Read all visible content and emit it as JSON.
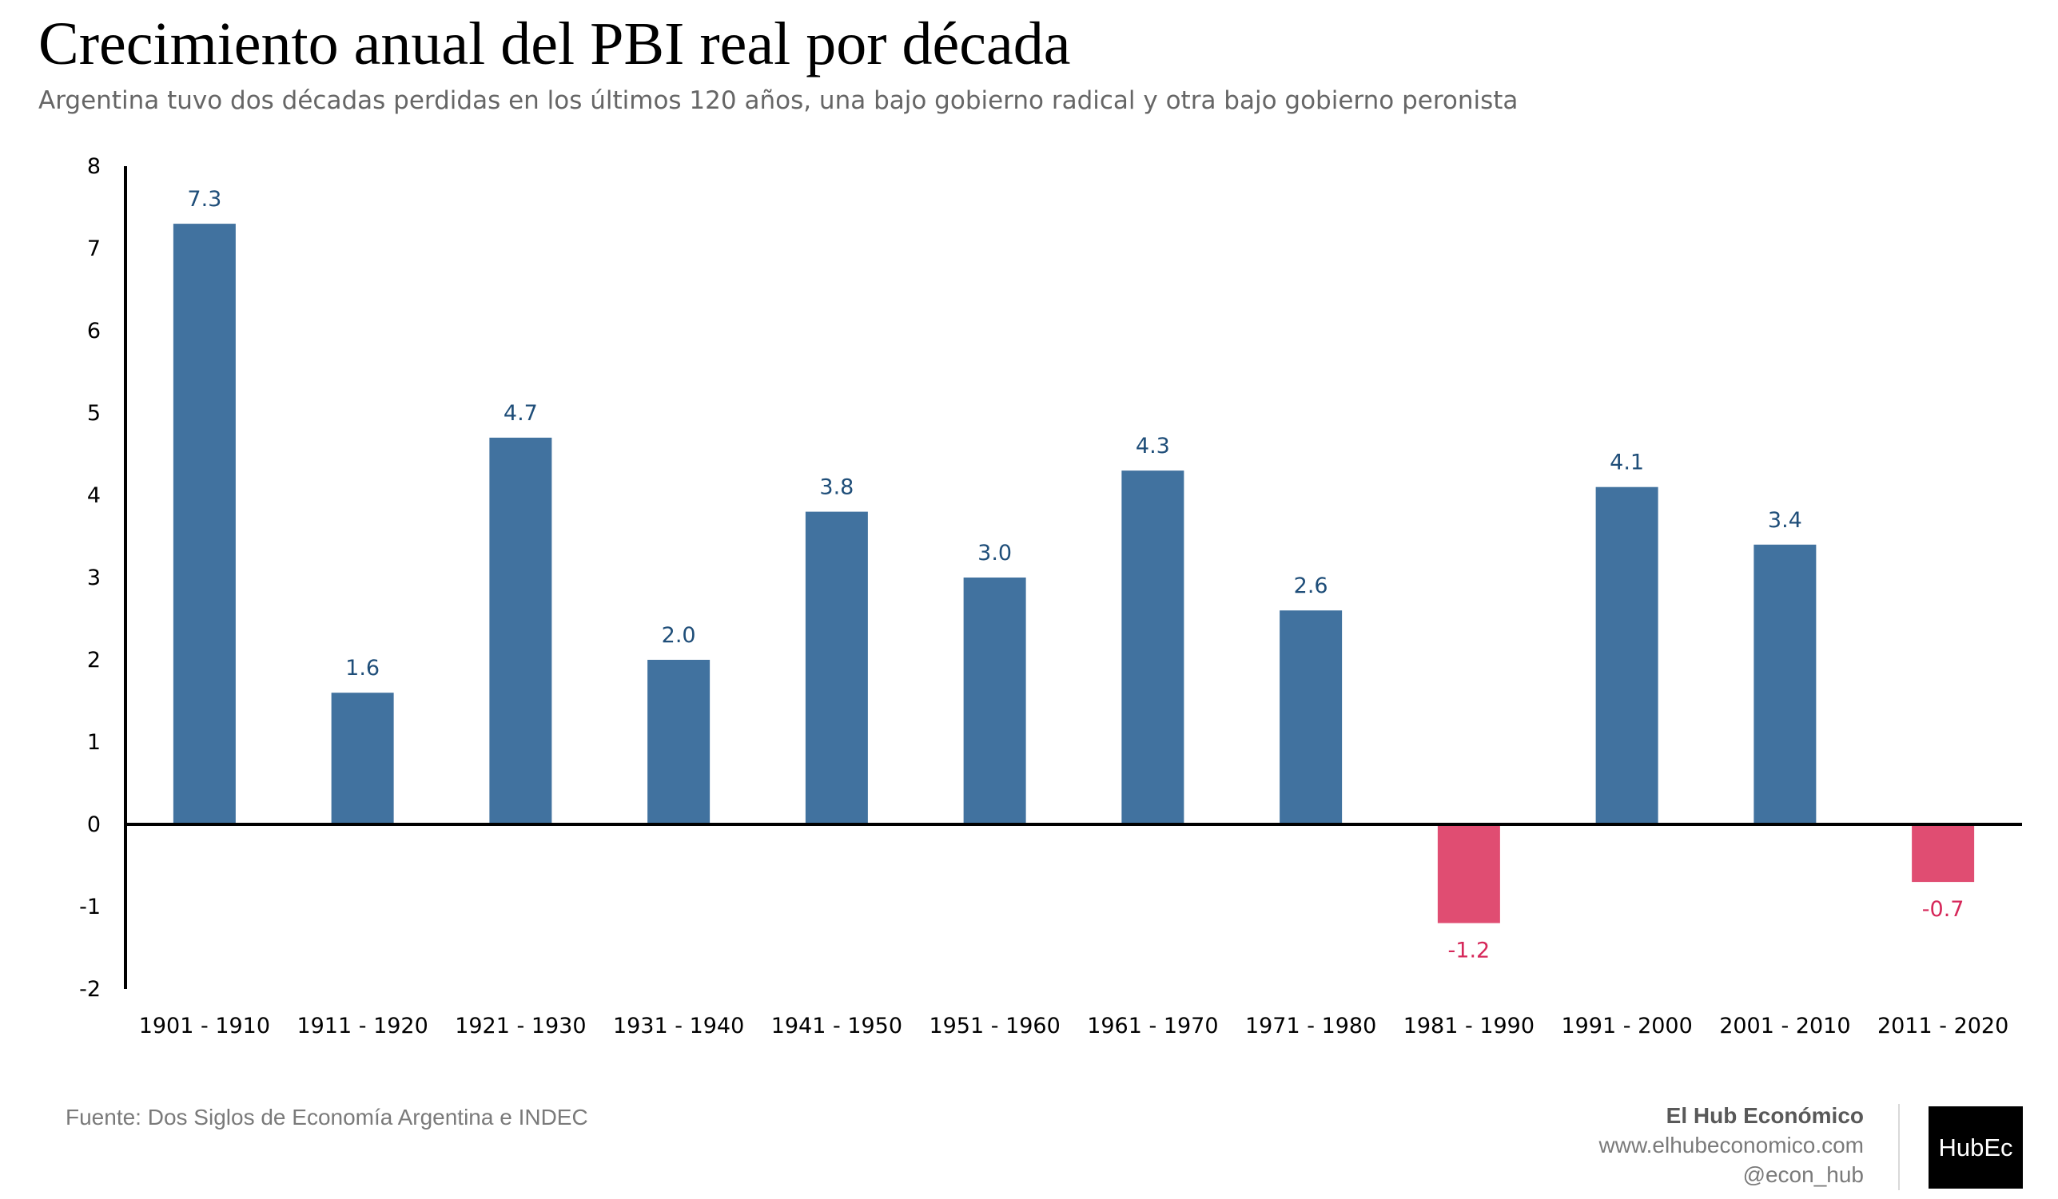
{
  "header": {
    "title": "Crecimiento anual del PBI real por década",
    "subtitle": "Argentina tuvo dos décadas perdidas en los últimos 120 años, una bajo gobierno radical y otra bajo gobierno peronista"
  },
  "chart_data": {
    "type": "bar",
    "title": "Crecimiento anual del PBI real por década",
    "xlabel": "",
    "ylabel": "",
    "ylim": [
      -2,
      8
    ],
    "yticks": [
      -2,
      -1,
      0,
      1,
      2,
      3,
      4,
      5,
      6,
      7,
      8
    ],
    "grid": false,
    "categories": [
      "1901 - 1910",
      "1911 - 1920",
      "1921 - 1930",
      "1931 - 1940",
      "1941 - 1950",
      "1951 - 1960",
      "1961 - 1970",
      "1971 - 1980",
      "1981 - 1990",
      "1991 - 2000",
      "2001 - 2010",
      "2011 - 2020"
    ],
    "values": [
      7.3,
      1.6,
      4.7,
      2.0,
      3.8,
      3.0,
      4.3,
      2.6,
      -1.2,
      4.1,
      3.4,
      -0.7
    ],
    "data_labels": [
      "7.3",
      "1.6",
      "4.7",
      "2.0",
      "3.8",
      "3.0",
      "4.3",
      "2.6",
      "-1.2",
      "4.1",
      "3.4",
      "-0.7"
    ],
    "colors": {
      "positive_bar": "#41729f",
      "negative_bar": "#e04d72",
      "positive_label": "#1f4e79",
      "negative_label": "#d6285a"
    }
  },
  "footer": {
    "source": "Fuente: Dos Siglos de Economía Argentina e INDEC",
    "brand_name": "El Hub Económico",
    "website": "www.elhubeconomico.com",
    "handle": "@econ_hub",
    "logo_text": "HubEc"
  }
}
